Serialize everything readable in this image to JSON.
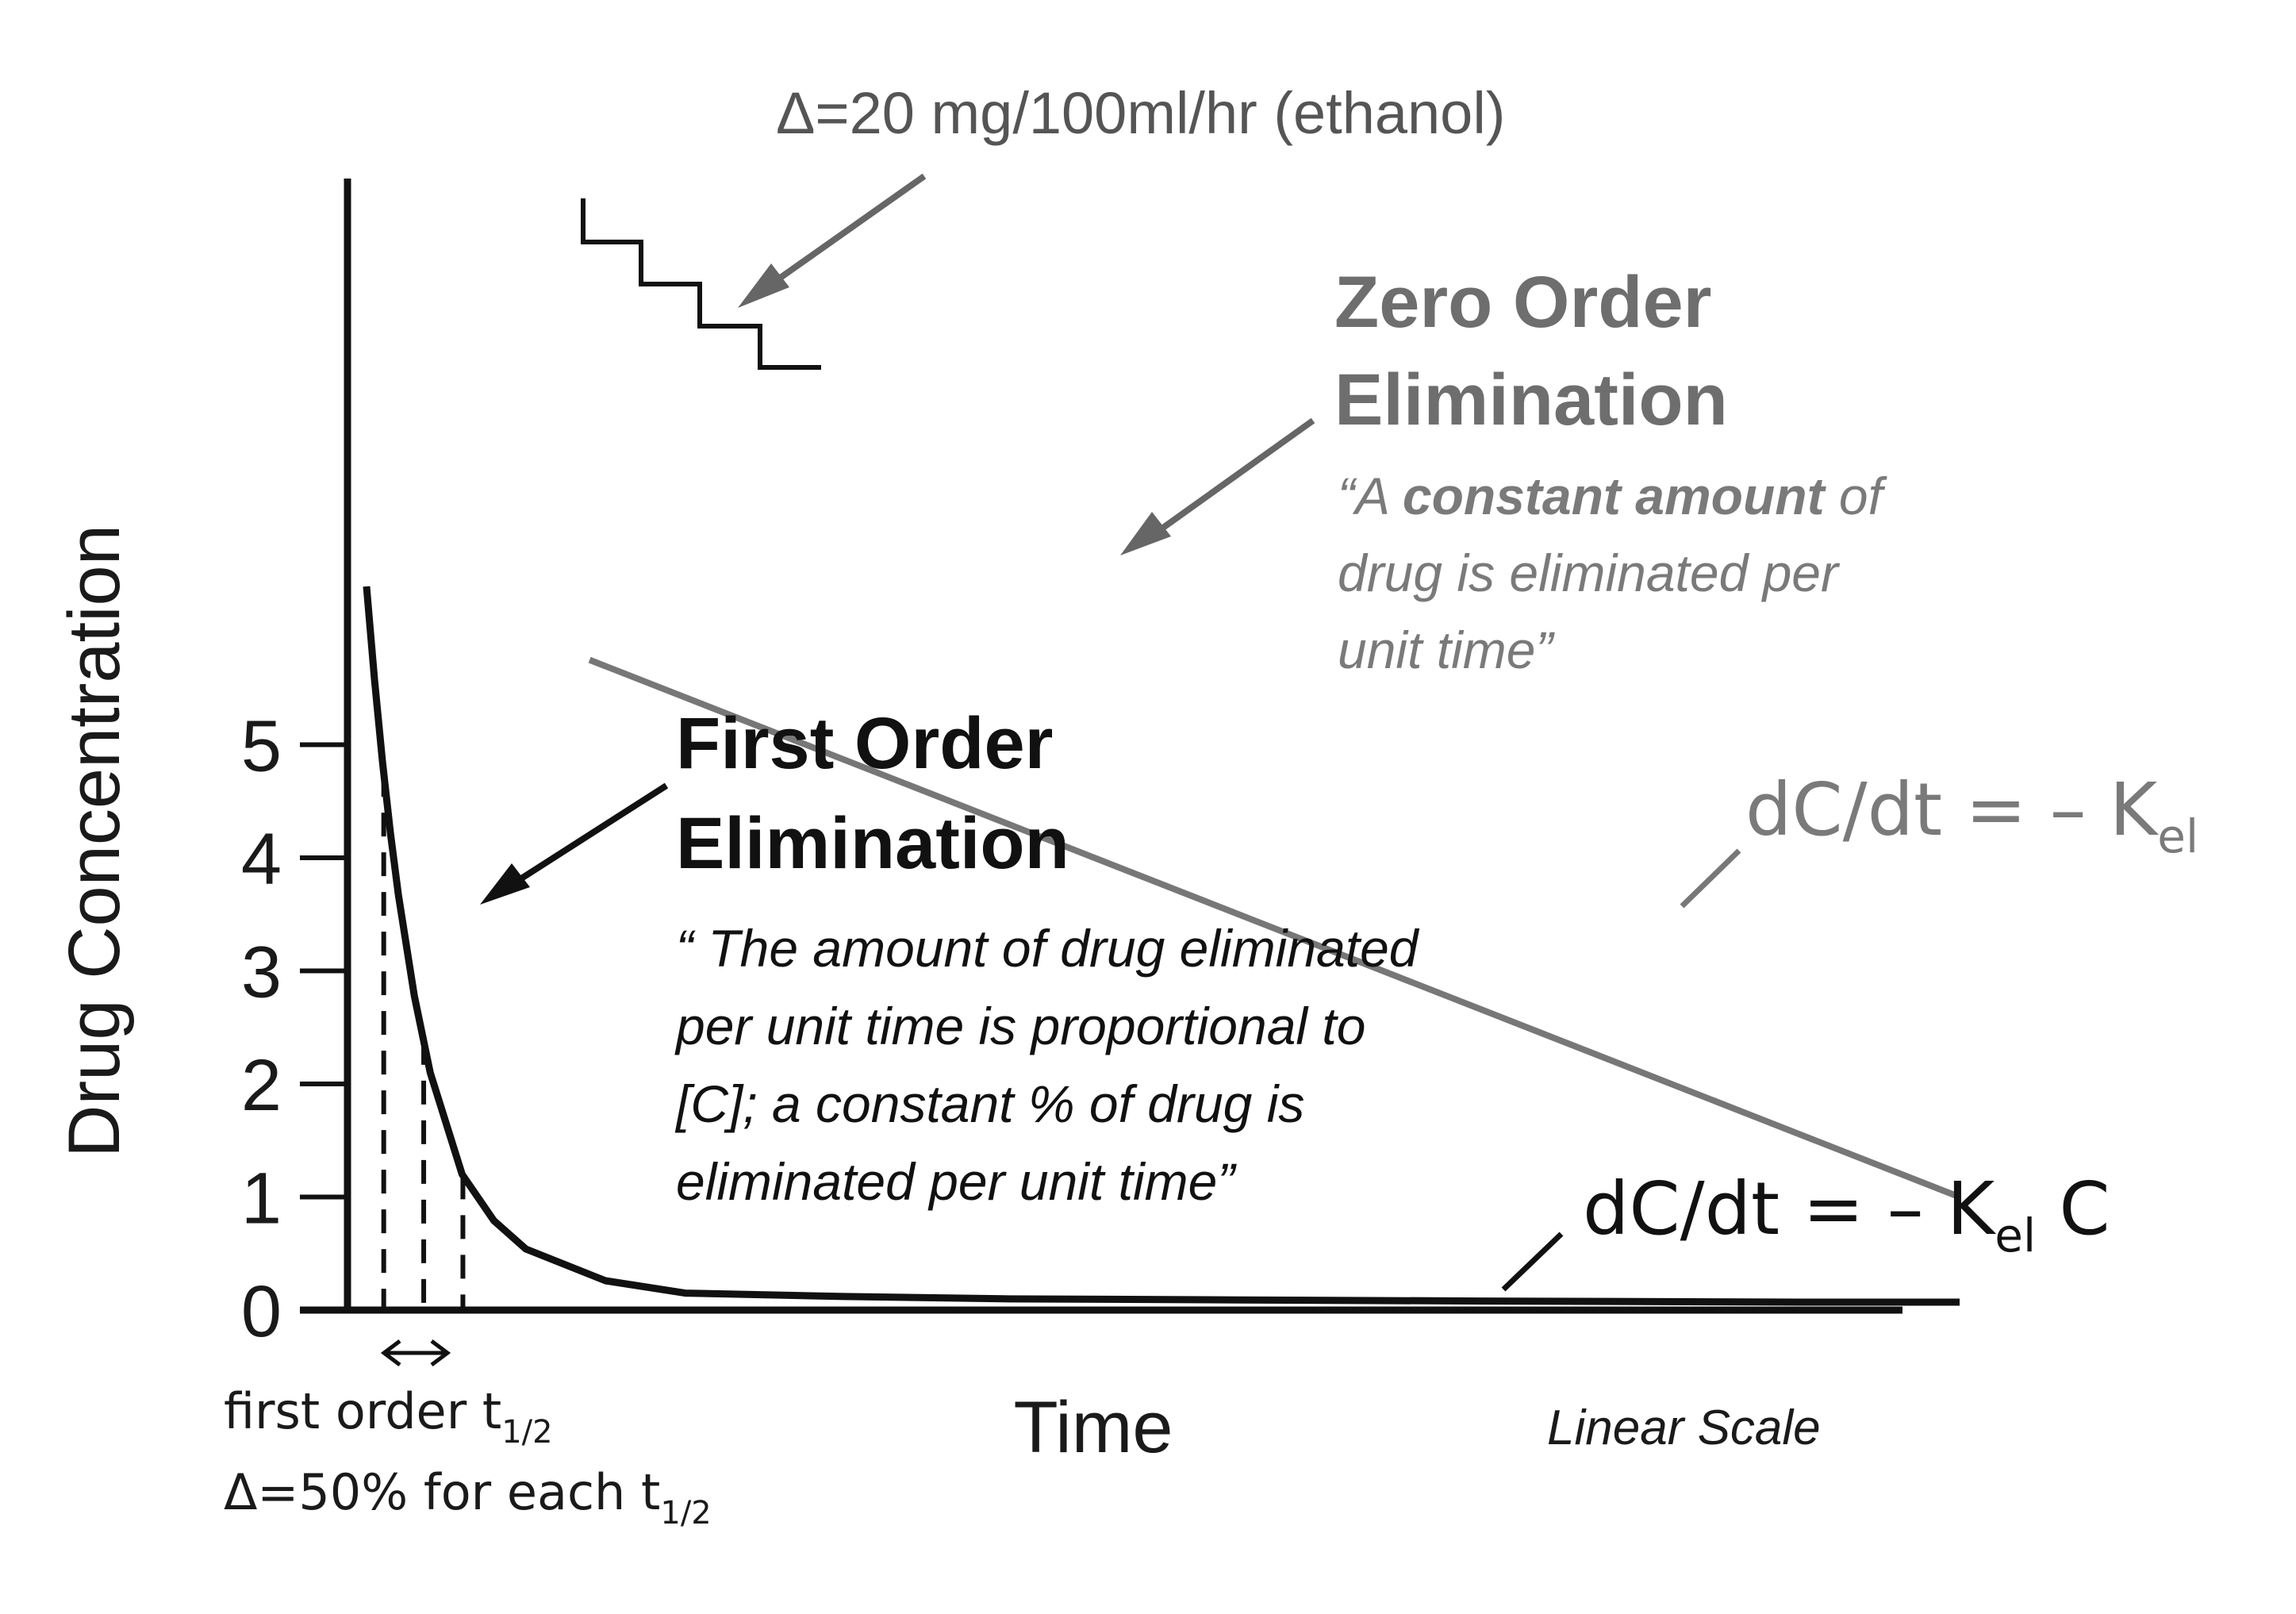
{
  "colors": {
    "first_order": "#111111",
    "zero_order": "#777777",
    "axis": "#111111"
  },
  "chart_data": {
    "type": "line",
    "xlabel": "Time",
    "ylabel": "Drug Concentration",
    "x_scale_note": "Linear Scale",
    "ylim": [
      0,
      5.5
    ],
    "y_ticks": [
      "0",
      "1",
      "2",
      "3",
      "4",
      "5"
    ],
    "x_ticks": [],
    "grid": false,
    "series": [
      {
        "color": "#111111",
        "x": [
          0.0,
          0.05,
          0.1,
          0.15,
          0.2,
          0.3,
          0.4,
          0.6,
          0.8,
          1.0,
          1.5,
          2.0,
          3.0,
          4.0,
          5.5,
          7.0,
          9.0,
          10.0
        ],
        "y": [
          6.4,
          5.58,
          4.85,
          4.22,
          3.67,
          2.78,
          2.1,
          1.2,
          0.79,
          0.54,
          0.26,
          0.15,
          0.12,
          0.1,
          0.09,
          0.08,
          0.07,
          0.07
        ]
      },
      {
        "color": "#777777",
        "x": [
          1.4,
          10.0
        ],
        "y": [
          5.75,
          1.0
        ]
      }
    ],
    "half_life_markers_y": [
      4.75,
      2.38,
      1.19
    ],
    "staircase_note": "Δ=20 mg/100ml/hr (ethanol)"
  },
  "annotations": {
    "zero_order": {
      "title_line1": "Zero Order",
      "title_line2": "Elimination",
      "quote_open": "“A ",
      "quote_bold": "constant amount",
      "quote_rest1": " of",
      "quote_line2": "drug is eliminated per",
      "quote_line3": "unit time”",
      "equation_main": "dC/dt = – K",
      "equation_sub": "el"
    },
    "first_order": {
      "title_line1": "First Order",
      "title_line2": "Elimination",
      "quote_line1": "“ The amount of drug eliminated",
      "quote_line2": "per unit time is proportional to",
      "quote_line3": "[C]; a constant % of drug is",
      "quote_line4": "eliminated per unit time”",
      "equation_main": "dC/dt = – K",
      "equation_sub": "el",
      "equation_tail": " C"
    },
    "half_life": {
      "line1_main": "first order t",
      "line1_sub": "1/2",
      "line2_main": "Δ=50% for each t",
      "line2_sub": "1/2"
    }
  }
}
